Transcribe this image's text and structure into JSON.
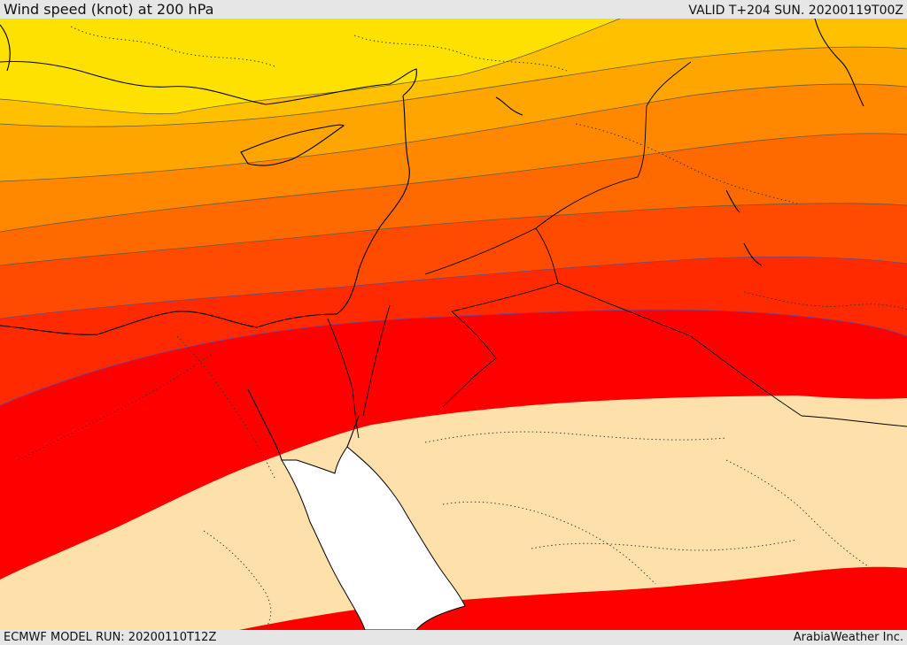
{
  "header": {
    "title": "Wind speed (knot) at 200 hPa",
    "valid": "VALID T+204 SUN. 20200119T00Z"
  },
  "footer": {
    "model_run": "ECMWF MODEL RUN: 20200110T12Z",
    "credit": "ArabiaWeather Inc."
  },
  "colors": {
    "band_1_lowest_shown": "#fde0aa",
    "band_2": "#ffe100",
    "band_3": "#ffc000",
    "band_4": "#ffa500",
    "band_5": "#ff8800",
    "band_6": "#ff6a00",
    "band_7": "#ff4b00",
    "band_8": "#ff2a00",
    "band_9_highest": "#ff0000",
    "sea_no_data": "#ffffff",
    "coastline": "#000000",
    "borders_dotted": "#333333"
  }
}
